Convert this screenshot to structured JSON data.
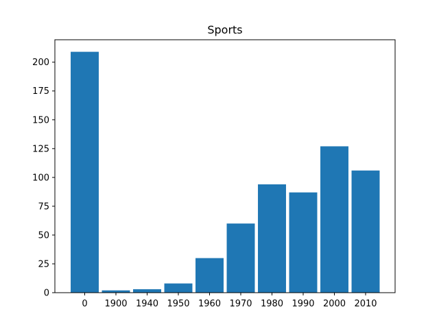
{
  "chart_data": {
    "type": "bar",
    "title": "Sports",
    "xlabel": "",
    "ylabel": "",
    "categories": [
      "0",
      "1900",
      "1940",
      "1950",
      "1960",
      "1970",
      "1980",
      "1990",
      "2000",
      "2010"
    ],
    "values": [
      209,
      2,
      3,
      8,
      30,
      60,
      94,
      87,
      127,
      106
    ],
    "ylim": [
      0,
      219.45
    ],
    "yticks": [
      0,
      25,
      50,
      75,
      100,
      125,
      150,
      175,
      200
    ],
    "grid": false,
    "bar_color": "#1f77b4"
  }
}
